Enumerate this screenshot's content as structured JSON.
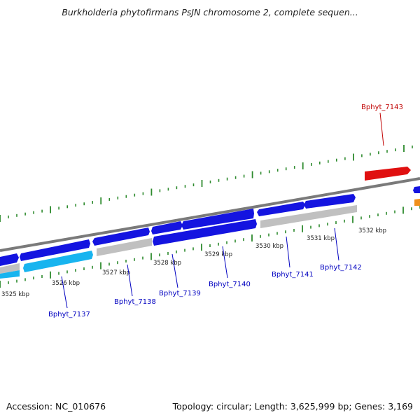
{
  "title": "Burkholderia phytofirmans PsJN chromosome 2, complete sequen...",
  "footer": {
    "accession": "Accession: NC_010676",
    "summary": "Topology: circular; Length: 3,625,999 bp; Genes: 3,169"
  },
  "colors": {
    "forward_gene": "#1414e0",
    "reverse_gene": "#1414e0",
    "highlight_gene": "#e01010",
    "cyan_gene": "#18b4ef",
    "gray_gene": "#c0c0c0",
    "orange_gene": "#f0901a",
    "backbone": "#7a7a7a",
    "ticks": "#2e8b2e",
    "label_blue": "#0000c0",
    "label_red": "#c00000"
  },
  "kbp_labels": [
    "3525 kbp",
    "3526 kbp",
    "3527 kbp",
    "3528 kbp",
    "3529 kbp",
    "3530 kbp",
    "3531 kbp",
    "3532 kbp"
  ],
  "gene_labels": [
    {
      "name": "Bphyt_7137",
      "color": "label_blue"
    },
    {
      "name": "Bphyt_7138",
      "color": "label_blue"
    },
    {
      "name": "Bphyt_7139",
      "color": "label_blue"
    },
    {
      "name": "Bphyt_7140",
      "color": "label_blue"
    },
    {
      "name": "Bphyt_7141",
      "color": "label_blue"
    },
    {
      "name": "Bphyt_7142",
      "color": "label_blue"
    },
    {
      "name": "Bphyt_7143",
      "color": "label_red"
    }
  ]
}
